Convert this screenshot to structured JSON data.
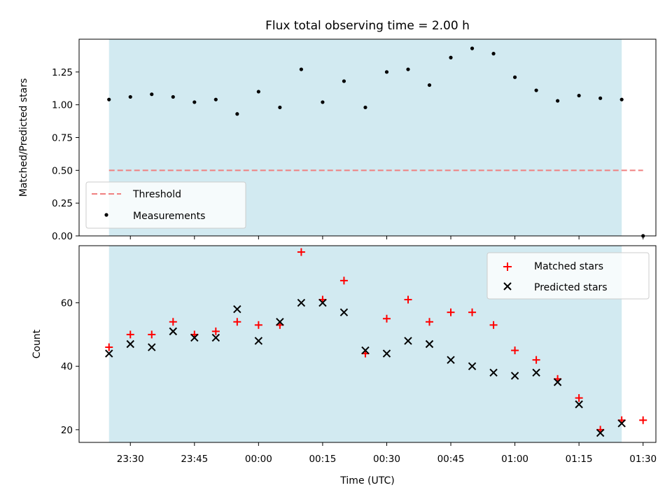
{
  "chart_data": [
    {
      "type": "scatter",
      "title": "Flux total observing time = 2.00 h",
      "xlabel": "",
      "ylabel": "Matched/Predicted stars",
      "ylim": [
        0,
        1.5
      ],
      "yticks": [
        "0.00",
        "0.25",
        "0.50",
        "0.75",
        "1.00",
        "1.25"
      ],
      "threshold": {
        "name": "Threshold",
        "value": 0.5,
        "color": "#f08080"
      },
      "measurements_name": "Measurements",
      "legend_position": "lower-left",
      "shaded_interval": [
        "23:25",
        "01:25"
      ],
      "shade_color": "#add8e6",
      "x": [
        "23:25",
        "23:30",
        "23:35",
        "23:40",
        "23:45",
        "23:50",
        "23:55",
        "00:00",
        "00:05",
        "00:10",
        "00:15",
        "00:20",
        "00:25",
        "00:30",
        "00:35",
        "00:40",
        "00:45",
        "00:50",
        "00:55",
        "01:00",
        "01:05",
        "01:10",
        "01:15",
        "01:20",
        "01:25",
        "01:30"
      ],
      "series": [
        {
          "name": "Measurements",
          "values": [
            1.04,
            1.06,
            1.08,
            1.06,
            1.02,
            1.04,
            0.93,
            1.1,
            0.98,
            1.27,
            1.02,
            1.18,
            0.98,
            1.25,
            1.27,
            1.15,
            1.36,
            1.43,
            1.39,
            1.21,
            1.11,
            1.03,
            1.07,
            1.05,
            1.04,
            0.0
          ]
        }
      ]
    },
    {
      "type": "scatter",
      "title": "",
      "xlabel": "Time (UTC)",
      "ylabel": "Count",
      "ylim": [
        16,
        78
      ],
      "yticks": [
        "20",
        "40",
        "60"
      ],
      "xticks": [
        "23:30",
        "23:45",
        "00:00",
        "00:15",
        "00:30",
        "00:45",
        "01:00",
        "01:15",
        "01:30"
      ],
      "legend_position": "top-right",
      "x": [
        "23:25",
        "23:30",
        "23:35",
        "23:40",
        "23:45",
        "23:50",
        "23:55",
        "00:00",
        "00:05",
        "00:10",
        "00:15",
        "00:20",
        "00:25",
        "00:30",
        "00:35",
        "00:40",
        "00:45",
        "00:50",
        "00:55",
        "01:00",
        "01:05",
        "01:10",
        "01:15",
        "01:20",
        "01:25",
        "01:30"
      ],
      "series": [
        {
          "name": "Matched stars",
          "marker": "+",
          "color": "#ff0000",
          "values": [
            46,
            50,
            50,
            54,
            50,
            51,
            54,
            53,
            53,
            76,
            61,
            67,
            44,
            55,
            61,
            54,
            57,
            57,
            53,
            45,
            42,
            36,
            30,
            20,
            23,
            23
          ]
        },
        {
          "name": "Predicted stars",
          "marker": "x",
          "color": "#000000",
          "values": [
            44,
            47,
            46,
            51,
            49,
            49,
            58,
            48,
            54,
            60,
            60,
            57,
            45,
            44,
            48,
            47,
            42,
            40,
            38,
            37,
            38,
            35,
            28,
            19,
            22,
            null
          ]
        }
      ]
    }
  ]
}
